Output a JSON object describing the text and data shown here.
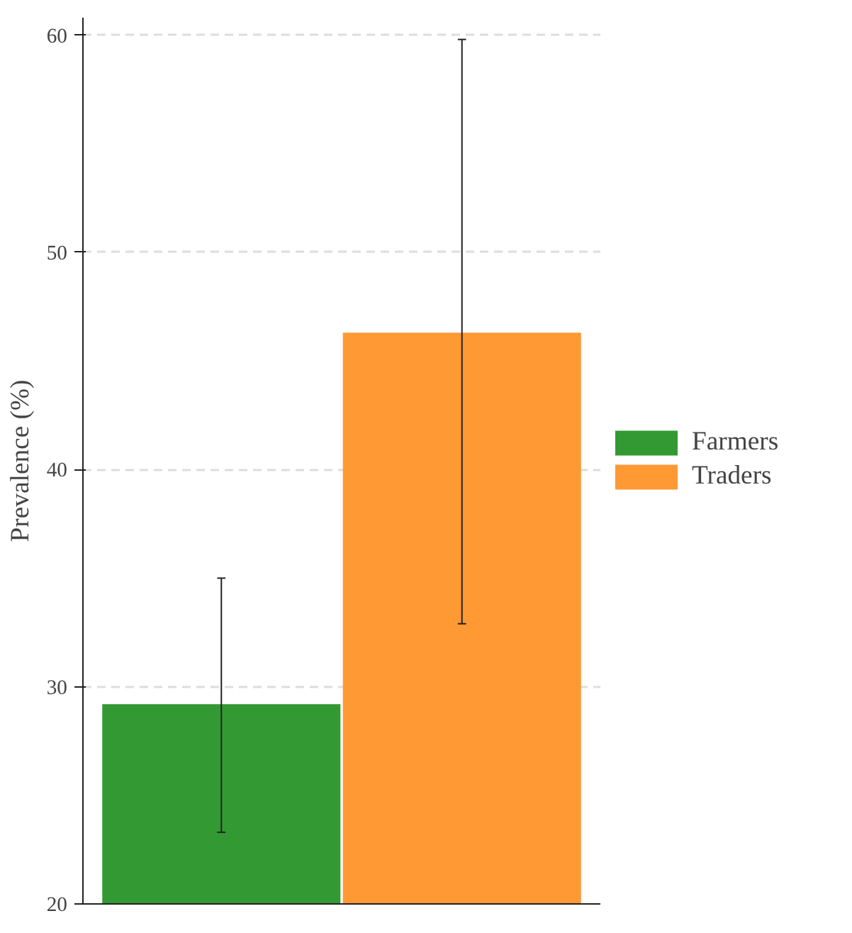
{
  "chart_data": {
    "type": "bar",
    "ylabel": "Prevalence (%)",
    "categories": [
      null
    ],
    "series": [
      {
        "name": "Farmers",
        "color": "#339933",
        "values": [
          29.2
        ],
        "errors": [
          [
            23.3,
            35.0
          ]
        ]
      },
      {
        "name": "Traders",
        "color": "#ff9933",
        "values": [
          46.3
        ],
        "errors": [
          [
            32.9,
            59.8
          ]
        ]
      }
    ],
    "ylim": [
      20,
      60.8
    ],
    "yticks": [
      20,
      30,
      40,
      50,
      60
    ],
    "grid": "y",
    "legend": "right",
    "tick_labels": "y"
  }
}
